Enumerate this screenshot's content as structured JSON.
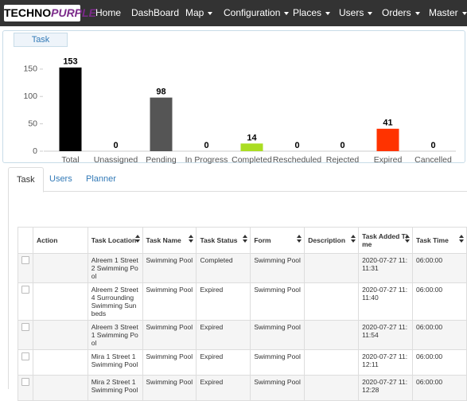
{
  "logo": {
    "part1": "TECHNO",
    "part2": "PURPLE"
  },
  "navbar": {
    "items": [
      "Home",
      "DashBoard",
      "Map",
      "Configuration",
      "Places",
      "Users",
      "Orders",
      "Master"
    ],
    "dropdowns": [
      false,
      false,
      true,
      true,
      true,
      true,
      true,
      true
    ]
  },
  "chart_button": "Task",
  "chart_data": {
    "type": "bar",
    "categories": [
      "Total",
      "Unassigned",
      "Pending",
      "In Progress",
      "Completed",
      "Rescheduled",
      "Rejected",
      "Expired",
      "Cancelled"
    ],
    "values": [
      153,
      0,
      98,
      0,
      14,
      0,
      0,
      41,
      0
    ],
    "colors": [
      "#000000",
      null,
      "#555555",
      null,
      "#aadd22",
      null,
      null,
      "#ff3300",
      null
    ],
    "ylim": [
      0,
      160
    ],
    "yticks": [
      0,
      50,
      100,
      150
    ],
    "grid": false
  },
  "tabs": [
    "Task",
    "Users",
    "Planner"
  ],
  "table": {
    "columns": [
      "",
      "Action",
      "Task Location",
      "Task Name",
      "Task Status",
      "Form",
      "Description",
      "Task Added Time",
      "Task Time"
    ],
    "sortable": [
      false,
      false,
      true,
      true,
      true,
      true,
      true,
      true,
      true
    ],
    "rows": [
      [
        "Alreem 1 Street 2 Swimming Pool",
        "Swimming Pool",
        "Completed",
        "Swimming Pool",
        "2020-07-27 11:11:31",
        "06:00:00"
      ],
      [
        "Alreem 2 Street 4 Surrounding Swimming Sunbeds",
        "Swimming Pool",
        "Expired",
        "Swimming Pool",
        "2020-07-27 11:11:40",
        "06:00:00"
      ],
      [
        "Alreem 3 Street 1 Swimming Pool",
        "Swimming Pool",
        "Expired",
        "Swimming Pool",
        "2020-07-27 11:11:54",
        "06:00:00"
      ],
      [
        "Mira 1 Street 1 Swimming Pool",
        "Swimming Pool",
        "Expired",
        "Swimming Pool",
        "2020-07-27 11:12:11",
        "06:00:00"
      ],
      [
        "Mira 2 Street 1 Swimming Pool",
        "Swimming Pool",
        "Expired",
        "Swimming Pool",
        "2020-07-27 11:12:28",
        "06:00:00"
      ]
    ]
  }
}
